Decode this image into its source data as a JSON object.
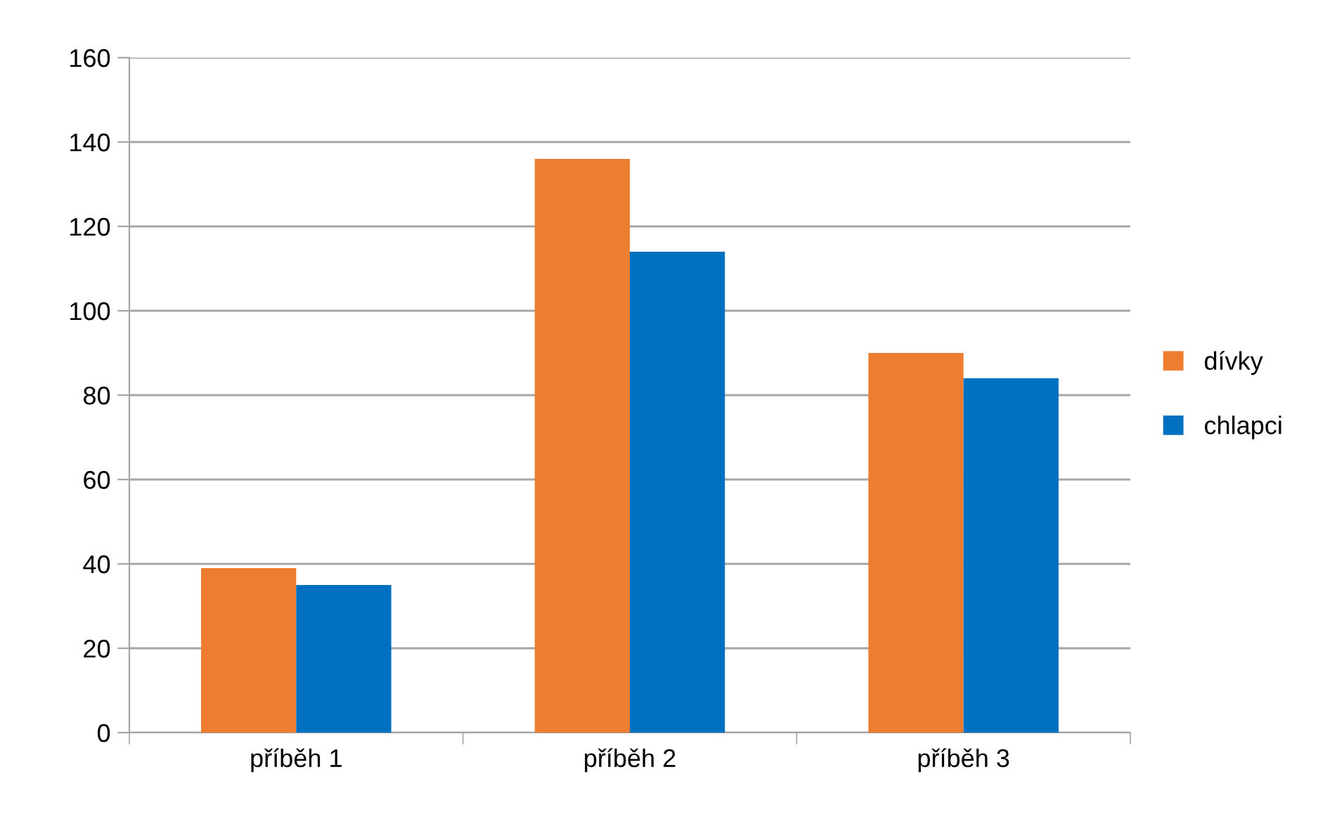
{
  "chart_data": {
    "type": "bar",
    "categories": [
      "příběh 1",
      "příběh 2",
      "příběh 3"
    ],
    "series": [
      {
        "name": "dívky",
        "color": "#ed7d31",
        "values": [
          39,
          136,
          90
        ]
      },
      {
        "name": "chlapci",
        "color": "#0070c0",
        "values": [
          35,
          114,
          84
        ]
      }
    ],
    "ylim": [
      0,
      160
    ],
    "yticks": [
      0,
      20,
      40,
      60,
      80,
      100,
      120,
      140,
      160
    ],
    "grid": "y",
    "legend": "right"
  }
}
